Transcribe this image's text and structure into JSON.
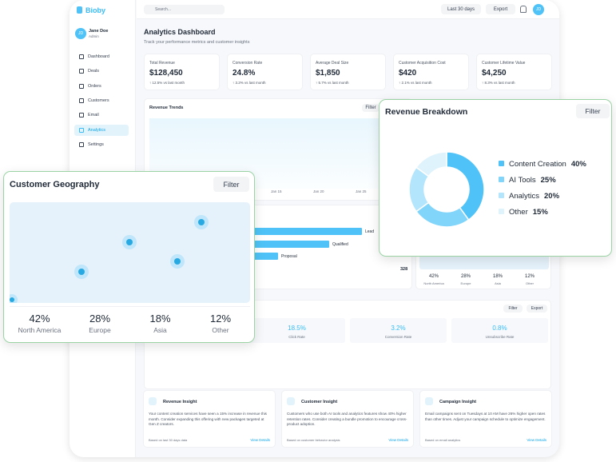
{
  "app": {
    "logo": "Bioby",
    "search": "Search...",
    "date_range": "Last 30 days",
    "export": "Export",
    "avatar": "JD"
  },
  "user": {
    "initials": "JD",
    "name": "Jane Doe",
    "role": "Admin"
  },
  "nav": [
    "Dashboard",
    "Deals",
    "Orders",
    "Customers",
    "Email",
    "Analytics",
    "Settings"
  ],
  "header": {
    "title": "Analytics Dashboard",
    "subtitle": "Track your performance metrics and customer insights"
  },
  "kpis": [
    {
      "label": "Total Revenue",
      "value": "$128,450",
      "change": "↑ 12.5% vs last month"
    },
    {
      "label": "Conversion Rate",
      "value": "24.8%",
      "change": "↑ 3.2% vs last month"
    },
    {
      "label": "Average Deal Size",
      "value": "$1,850",
      "change": "↑ 5.7% vs last month"
    },
    {
      "label": "Customer Acquisition Cost",
      "value": "$420",
      "change": "↑ 2.1% vs last month"
    },
    {
      "label": "Customer Lifetime Value",
      "value": "$4,250",
      "change": "↑ 8.3% vs last month"
    }
  ],
  "revenue_trends": {
    "title": "Revenue Trends",
    "filter": "Filter",
    "x_labels": [
      "Jan 15",
      "Jan 20",
      "Jan 25"
    ]
  },
  "funnel": {
    "stages": [
      "Lead",
      "Qualified",
      "Proposal"
    ],
    "count": "328"
  },
  "email": {
    "filter": "Filter",
    "export": "Export",
    "metrics": [
      {
        "value": "18.5%",
        "label": "Click Rate"
      },
      {
        "value": "3.2%",
        "label": "Conversion Rate"
      },
      {
        "value": "0.8%",
        "label": "Unsubscribe Rate"
      }
    ]
  },
  "insights": [
    {
      "title": "Revenue Insight",
      "text": "Your content creation services have seen a 15% increase in revenue this month. Consider expanding this offering with new packages targeted at Gen Z creators.",
      "footer": "Based on last 30 days data",
      "link": "View Details"
    },
    {
      "title": "Customer Insight",
      "text": "Customers who use both AI tools and analytics features show 40% higher retention rates. Consider creating a bundle promotion to encourage cross-product adoption.",
      "footer": "Based on customer behavior analysis",
      "link": "View Details"
    },
    {
      "title": "Campaign Insight",
      "text": "Email campaigns sent on Tuesdays at 10 AM have 26% higher open rates than other times. Adjust your campaign schedule to optimize engagement.",
      "footer": "Based on email analytics",
      "link": "View Details"
    }
  ],
  "revenue_breakdown": {
    "type": "pie",
    "title": "Revenue Breakdown",
    "filter": "Filter",
    "categories": [
      "Content Creation",
      "AI Tools",
      "Analytics",
      "Other"
    ],
    "values": [
      40,
      25,
      20,
      15
    ],
    "value_labels": [
      "40%",
      "25%",
      "20%",
      "15%"
    ],
    "colors": [
      "#4fc3f7",
      "#81d4fa",
      "#b3e5fc",
      "#dff3fc"
    ]
  },
  "geography": {
    "title": "Customer Geography",
    "filter": "Filter",
    "stats": [
      {
        "value": "42%",
        "label": "North America"
      },
      {
        "value": "28%",
        "label": "Europe"
      },
      {
        "value": "18%",
        "label": "Asia"
      },
      {
        "value": "12%",
        "label": "Other"
      }
    ]
  }
}
